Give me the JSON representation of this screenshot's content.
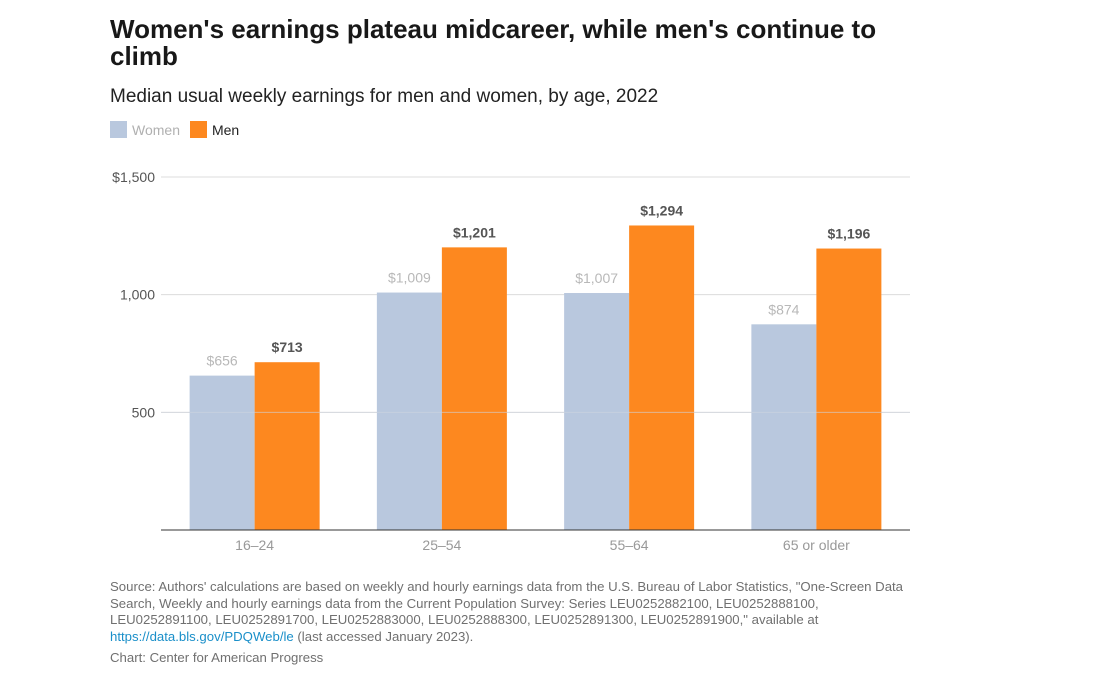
{
  "title": "Women's earnings plateau midcareer, while men's continue to climb",
  "subtitle": "Median usual weekly earnings for men and women, by age, 2022",
  "legend": {
    "women_label": "Women",
    "men_label": "Men"
  },
  "colors": {
    "women": "#b9c8de",
    "men": "#fd881f",
    "women_label_text": "#b8b8b8",
    "men_label_text": "#555555"
  },
  "chart_data": {
    "type": "bar",
    "categories": [
      "16–24",
      "25–54",
      "55–64",
      "65 or older"
    ],
    "series": [
      {
        "name": "Women",
        "values": [
          656,
          1009,
          1007,
          874
        ],
        "labels": [
          "$656",
          "$1,009",
          "$1,007",
          "$874"
        ]
      },
      {
        "name": "Men",
        "values": [
          713,
          1201,
          1294,
          1196
        ],
        "labels": [
          "$713",
          "$1,201",
          "$1,294",
          "$1,196"
        ]
      }
    ],
    "yticks": [
      {
        "value": 500,
        "label": "500"
      },
      {
        "value": 1000,
        "label": "1,000"
      },
      {
        "value": 1500,
        "label": "$1,500"
      }
    ],
    "ylim": [
      0,
      1500
    ],
    "grid": true,
    "legend_position": "top-left"
  },
  "source": {
    "text": "Source: Authors' calculations are based on weekly and hourly earnings data from the U.S. Bureau of Labor Statistics, \"One-Screen Data Search, Weekly and hourly earnings data from the Current Population Survey: Series LEU0252882100, LEU0252888100, LEU0252891100, LEU0252891700, LEU0252883000, LEU0252888300, LEU0252891300, LEU0252891900,\" available at ",
    "link_text": "https://data.bls.gov/PDQWeb/le",
    "suffix": " (last accessed January 2023)."
  },
  "credit": "Chart: Center for American Progress"
}
